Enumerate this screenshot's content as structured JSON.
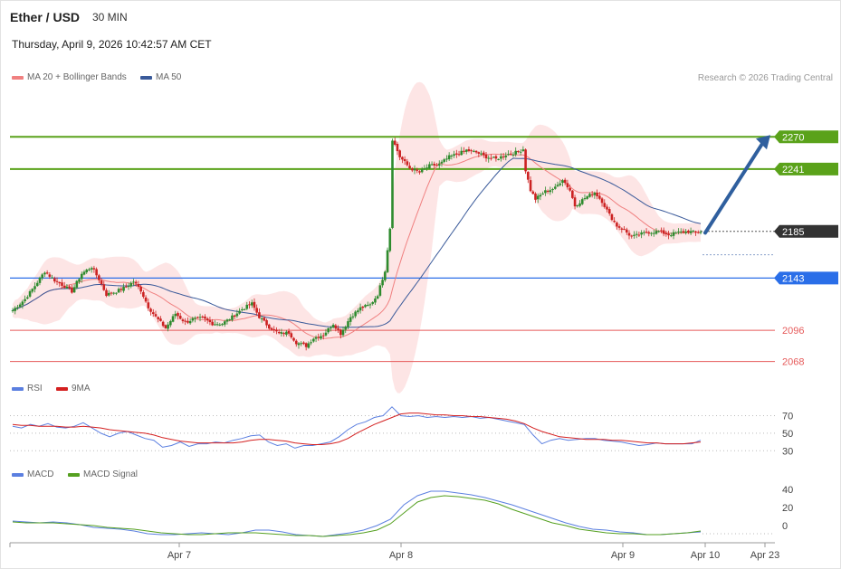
{
  "header": {
    "symbol": "Ether / USD",
    "timeframe": "30 MIN",
    "datetime": "Thursday, April 9, 2026 10:42:57 AM CET",
    "credit": "Research © 2026 Trading Central"
  },
  "colors": {
    "ma20": "#f08080",
    "bollinger_fill": "#fde0e0",
    "ma50": "#3a5a9a",
    "resistance": "#5aa21a",
    "support_blue": "#2a6ee8",
    "support_red": "#e65a5a",
    "last_price_tag": "#333333",
    "arrow": "#2f5f9e",
    "candle_up": "#2e8b2e",
    "candle_down": "#cc2222",
    "rsi": "#5b7fe0",
    "rsi_ma": "#d42020",
    "macd": "#5b7fe0",
    "macd_signal": "#55a020"
  },
  "chart_data": [
    {
      "type": "candlestick",
      "legend": [
        {
          "name": "MA 20 + Bollinger Bands",
          "color": "#f08080"
        },
        {
          "name": "MA 50",
          "color": "#3a5a9a"
        }
      ],
      "levels": [
        {
          "value": 2270,
          "label": "2270",
          "kind": "resistance",
          "color": "#5aa21a"
        },
        {
          "value": 2241,
          "label": "2241",
          "kind": "resistance",
          "color": "#5aa21a"
        },
        {
          "value": 2185,
          "label": "2185",
          "kind": "last",
          "color": "#333333"
        },
        {
          "value": 2143,
          "label": "2143",
          "kind": "support",
          "color": "#2a6ee8"
        },
        {
          "value": 2096,
          "label": "2096",
          "kind": "support",
          "color": "#e65a5a"
        },
        {
          "value": 2068,
          "label": "2068",
          "kind": "support",
          "color": "#e65a5a"
        }
      ],
      "ylim": [
        2053,
        2328
      ],
      "close_path": [
        [
          0,
          2114
        ],
        [
          5,
          2124
        ],
        [
          9,
          2136
        ],
        [
          13,
          2149
        ],
        [
          17,
          2141
        ],
        [
          20,
          2137
        ],
        [
          24,
          2131
        ],
        [
          28,
          2147
        ],
        [
          32,
          2153
        ],
        [
          35,
          2142
        ],
        [
          38,
          2128
        ],
        [
          42,
          2131
        ],
        [
          46,
          2135
        ],
        [
          49,
          2140
        ],
        [
          52,
          2132
        ],
        [
          55,
          2117
        ],
        [
          58,
          2108
        ],
        [
          62,
          2098
        ],
        [
          66,
          2111
        ],
        [
          70,
          2103
        ],
        [
          73,
          2106
        ],
        [
          77,
          2107
        ],
        [
          81,
          2102
        ],
        [
          85,
          2102
        ],
        [
          89,
          2108
        ],
        [
          93,
          2115
        ],
        [
          97,
          2120
        ],
        [
          100,
          2108
        ],
        [
          104,
          2099
        ],
        [
          108,
          2093
        ],
        [
          112,
          2094
        ],
        [
          115,
          2085
        ],
        [
          119,
          2082
        ],
        [
          122,
          2089
        ],
        [
          126,
          2092
        ],
        [
          130,
          2102
        ],
        [
          133,
          2093
        ],
        [
          137,
          2108
        ],
        [
          141,
          2116
        ],
        [
          145,
          2119
        ],
        [
          148,
          2128
        ],
        [
          151,
          2150
        ],
        [
          153,
          2188
        ],
        [
          154,
          2268
        ],
        [
          157,
          2252
        ],
        [
          161,
          2242
        ],
        [
          165,
          2238
        ],
        [
          169,
          2244
        ],
        [
          173,
          2245
        ],
        [
          177,
          2252
        ],
        [
          181,
          2255
        ],
        [
          184,
          2258
        ],
        [
          188,
          2256
        ],
        [
          192,
          2252
        ],
        [
          196,
          2250
        ],
        [
          200,
          2254
        ],
        [
          204,
          2256
        ],
        [
          207,
          2259
        ],
        [
          208,
          2240
        ],
        [
          210,
          2222
        ],
        [
          212,
          2214
        ],
        [
          216,
          2221
        ],
        [
          220,
          2224
        ],
        [
          223,
          2232
        ],
        [
          226,
          2222
        ],
        [
          228,
          2208
        ],
        [
          232,
          2215
        ],
        [
          236,
          2220
        ],
        [
          239,
          2212
        ],
        [
          242,
          2200
        ],
        [
          245,
          2190
        ],
        [
          248,
          2186
        ],
        [
          251,
          2180
        ],
        [
          254,
          2182
        ],
        [
          257,
          2184
        ],
        [
          262,
          2185
        ],
        [
          266,
          2182
        ],
        [
          270,
          2184
        ],
        [
          274,
          2185
        ],
        [
          277,
          2184
        ],
        [
          279,
          2185
        ]
      ],
      "forecast_target": 2270,
      "x_ticks": [
        "Apr 7",
        "Apr 8",
        "Apr 9",
        "Apr 10",
        "Apr 23"
      ]
    },
    {
      "type": "line",
      "legend": [
        {
          "name": "RSI",
          "color": "#5b7fe0"
        },
        {
          "name": "9MA",
          "color": "#d42020"
        }
      ],
      "y_ticks": [
        70,
        50,
        30
      ],
      "ylim": [
        20,
        85
      ],
      "series": [
        {
          "name": "RSI",
          "values": [
            58,
            56,
            60,
            58,
            61,
            57,
            56,
            58,
            62,
            56,
            50,
            46,
            50,
            52,
            48,
            44,
            42,
            34,
            36,
            40,
            35,
            38,
            38,
            40,
            39,
            42,
            44,
            47,
            48,
            40,
            36,
            38,
            33,
            36,
            36,
            38,
            40,
            46,
            54,
            60,
            63,
            68,
            70,
            80,
            70,
            69,
            70,
            68,
            69,
            68,
            69,
            68,
            69,
            67,
            68,
            66,
            64,
            62,
            60,
            48,
            38,
            42,
            44,
            42,
            43,
            44,
            44,
            42,
            41,
            40,
            38,
            36,
            37,
            39,
            38,
            38,
            38,
            38,
            42
          ]
        },
        {
          "name": "9MA",
          "values": [
            60,
            59,
            59,
            58,
            58,
            58,
            57,
            57,
            58,
            57,
            56,
            54,
            53,
            52,
            51,
            50,
            48,
            45,
            43,
            41,
            40,
            39,
            39,
            39,
            39,
            39,
            40,
            42,
            43,
            43,
            42,
            41,
            39,
            38,
            37,
            37,
            38,
            40,
            44,
            50,
            55,
            60,
            64,
            68,
            72,
            73,
            73,
            72,
            71,
            71,
            70,
            70,
            69,
            69,
            68,
            67,
            66,
            64,
            61,
            56,
            52,
            49,
            46,
            45,
            44,
            43,
            43,
            43,
            42,
            42,
            41,
            40,
            39,
            39,
            38,
            38,
            38,
            39,
            40
          ]
        }
      ]
    },
    {
      "type": "line",
      "legend": [
        {
          "name": "MACD",
          "color": "#5b7fe0"
        },
        {
          "name": "MACD Signal",
          "color": "#55a020"
        }
      ],
      "y_ticks": [
        40,
        20,
        0
      ],
      "ylim": [
        -18,
        50
      ],
      "series": [
        {
          "name": "MACD",
          "values": [
            5,
            4,
            3,
            4,
            3,
            1,
            -2,
            -3,
            -4,
            -6,
            -9,
            -10,
            -10,
            -9,
            -8,
            -9,
            -10,
            -8,
            -5,
            -5,
            -7,
            -10,
            -11,
            -12,
            -10,
            -8,
            -5,
            0,
            7,
            23,
            33,
            38,
            38,
            36,
            34,
            31,
            27,
            23,
            18,
            13,
            8,
            3,
            -1,
            -4,
            -5,
            -7,
            -8,
            -10,
            -10,
            -9,
            -8,
            -7
          ]
        },
        {
          "name": "MACD Signal",
          "values": [
            4,
            3,
            3,
            3,
            2,
            1,
            0,
            -2,
            -3,
            -4,
            -6,
            -8,
            -9,
            -10,
            -10,
            -9,
            -8,
            -8,
            -8,
            -9,
            -10,
            -11,
            -11,
            -12,
            -11,
            -10,
            -8,
            -5,
            2,
            14,
            26,
            31,
            33,
            32,
            30,
            28,
            24,
            18,
            13,
            8,
            3,
            0,
            -4,
            -6,
            -8,
            -9,
            -9,
            -10,
            -10,
            -9,
            -8,
            -6
          ]
        }
      ]
    }
  ]
}
